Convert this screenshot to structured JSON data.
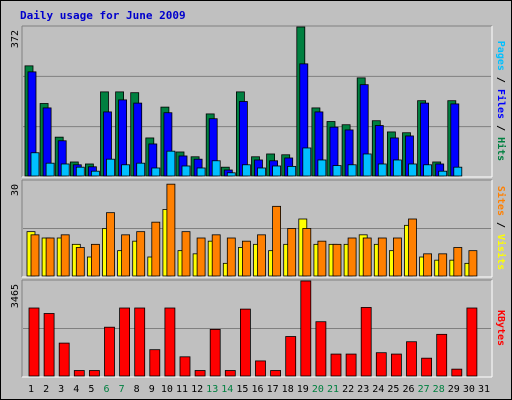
{
  "page_title": "Daily usage for June 2009",
  "chart_data": [
    {
      "type": "bar",
      "panel": "pages-files-hits",
      "x": [
        1,
        2,
        3,
        4,
        5,
        6,
        7,
        8,
        9,
        10,
        11,
        12,
        13,
        14,
        15,
        16,
        17,
        18,
        19,
        20,
        21,
        22,
        23,
        24,
        25,
        26,
        27,
        28,
        29,
        30,
        31
      ],
      "weekend_days": [
        6,
        7,
        13,
        14,
        20,
        21,
        27,
        28
      ],
      "y_max_label": "372",
      "ylim": [
        0,
        372
      ],
      "series": [
        {
          "name": "Hits",
          "color": "#008040",
          "values": [
            275,
            181,
            97,
            35,
            30,
            210,
            210,
            208,
            95,
            172,
            60,
            48,
            155,
            22,
            210,
            48,
            55,
            53,
            372,
            170,
            136,
            128,
            245,
            138,
            110,
            108,
            188,
            35,
            188,
            0,
            0
          ]
        },
        {
          "name": "Files",
          "color": "#0000ff",
          "values": [
            260,
            170,
            88,
            28,
            23,
            160,
            190,
            182,
            80,
            158,
            50,
            42,
            143,
            15,
            186,
            40,
            38,
            45,
            280,
            160,
            122,
            115,
            228,
            126,
            95,
            100,
            182,
            30,
            180,
            0,
            0
          ]
        },
        {
          "name": "Pages",
          "color": "#00c0ff",
          "values": [
            58,
            32,
            30,
            22,
            12,
            42,
            28,
            32,
            20,
            62,
            25,
            20,
            38,
            8,
            28,
            20,
            25,
            24,
            70,
            40,
            26,
            28,
            55,
            30,
            40,
            30,
            28,
            12,
            22,
            0,
            0
          ]
        }
      ],
      "y_axis_label": [
        "Pages",
        " / ",
        "Files",
        " / ",
        "Hits"
      ],
      "y_axis_label_colors": [
        "#00c0ff",
        "#000000",
        "#0000ff",
        "#000000",
        "#008040"
      ]
    },
    {
      "type": "bar",
      "panel": "sites-visits",
      "x": [
        1,
        2,
        3,
        4,
        5,
        6,
        7,
        8,
        9,
        10,
        11,
        12,
        13,
        14,
        15,
        16,
        17,
        18,
        19,
        20,
        21,
        22,
        23,
        24,
        25,
        26,
        27,
        28,
        29,
        30,
        31
      ],
      "y_max_label": "30",
      "ylim": [
        0,
        30
      ],
      "series": [
        {
          "name": "Visits",
          "color": "#ffff00",
          "values": [
            14,
            12,
            12,
            10,
            6,
            15,
            8,
            11,
            6,
            21,
            8,
            7,
            11,
            4,
            9,
            10,
            8,
            10,
            18,
            10,
            10,
            10,
            13,
            10,
            8,
            16,
            6,
            5,
            5,
            4,
            0
          ]
        },
        {
          "name": "Sites",
          "color": "#ff8000",
          "values": [
            13,
            12,
            13,
            9,
            10,
            20,
            13,
            14,
            17,
            29,
            14,
            12,
            13,
            12,
            11,
            13,
            22,
            15,
            15,
            11,
            10,
            12,
            12,
            12,
            12,
            18,
            7,
            7,
            9,
            8,
            0
          ]
        }
      ],
      "y_axis_label": [
        "Sites",
        " / ",
        "Visits"
      ],
      "y_axis_label_colors": [
        "#ff8000",
        "#000000",
        "#ffff00"
      ]
    },
    {
      "type": "bar",
      "panel": "kbytes",
      "x": [
        1,
        2,
        3,
        4,
        5,
        6,
        7,
        8,
        9,
        10,
        11,
        12,
        13,
        14,
        15,
        16,
        17,
        18,
        19,
        20,
        21,
        22,
        23,
        24,
        25,
        26,
        27,
        28,
        29,
        30,
        31
      ],
      "y_max_label": "3465",
      "ylim": [
        0,
        3465
      ],
      "series": [
        {
          "name": "KBytes",
          "color": "#ff0000",
          "values": [
            2480,
            2280,
            1200,
            200,
            200,
            1780,
            2480,
            2480,
            960,
            2480,
            700,
            200,
            1700,
            200,
            2440,
            550,
            200,
            1440,
            3465,
            1980,
            800,
            800,
            2500,
            850,
            800,
            1250,
            650,
            1520,
            250,
            2480,
            0
          ]
        }
      ],
      "y_axis_label": [
        "KBytes"
      ],
      "y_axis_label_colors": [
        "#ff0000"
      ]
    }
  ],
  "x_label_colors": {
    "weekday": "#000000",
    "weekend": "#008040"
  }
}
